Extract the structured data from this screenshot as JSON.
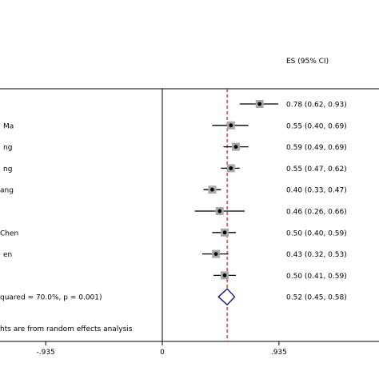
{
  "chart_data": {
    "type": "forest",
    "es_header": "ES (95% CI)",
    "studies": [
      {
        "label": "",
        "es": 0.78,
        "lo": 0.62,
        "hi": 0.93,
        "es_text": "0.78 (0.62, 0.93)"
      },
      {
        "label": "Ma",
        "es": 0.55,
        "lo": 0.4,
        "hi": 0.69,
        "es_text": "0.55 (0.40, 0.69)"
      },
      {
        "label": "ng",
        "es": 0.59,
        "lo": 0.49,
        "hi": 0.69,
        "es_text": "0.59 (0.49, 0.69)"
      },
      {
        "label": "ng",
        "es": 0.55,
        "lo": 0.47,
        "hi": 0.62,
        "es_text": "0.55 (0.47, 0.62)"
      },
      {
        "label": "ang",
        "es": 0.4,
        "lo": 0.33,
        "hi": 0.47,
        "es_text": "0.40 (0.33, 0.47)"
      },
      {
        "label": "",
        "es": 0.46,
        "lo": 0.26,
        "hi": 0.66,
        "es_text": "0.46 (0.26, 0.66)"
      },
      {
        "label": "Chen",
        "es": 0.5,
        "lo": 0.4,
        "hi": 0.59,
        "es_text": "0.50 (0.40, 0.59)"
      },
      {
        "label": "en",
        "es": 0.43,
        "lo": 0.32,
        "hi": 0.53,
        "es_text": "0.43 (0.32, 0.53)"
      },
      {
        "label": "",
        "es": 0.5,
        "lo": 0.41,
        "hi": 0.59,
        "es_text": "0.50 (0.41, 0.59)"
      }
    ],
    "overall": {
      "label": "quared = 70.0%, p = 0.001)",
      "es": 0.52,
      "lo": 0.45,
      "hi": 0.58,
      "es_text": "0.52 (0.45, 0.58)"
    },
    "footnote": "hts are from random effects analysis",
    "x_ticks": [
      {
        "value": -0.935,
        "label": "-.935"
      },
      {
        "value": 0,
        "label": "0"
      },
      {
        "value": 0.935,
        "label": ".935"
      }
    ],
    "null_line": 0,
    "overall_line": 0.52,
    "colors": {
      "diamond": "#1a1a6e",
      "overall_line": "#b22222",
      "box": "#a9a9a9"
    }
  }
}
